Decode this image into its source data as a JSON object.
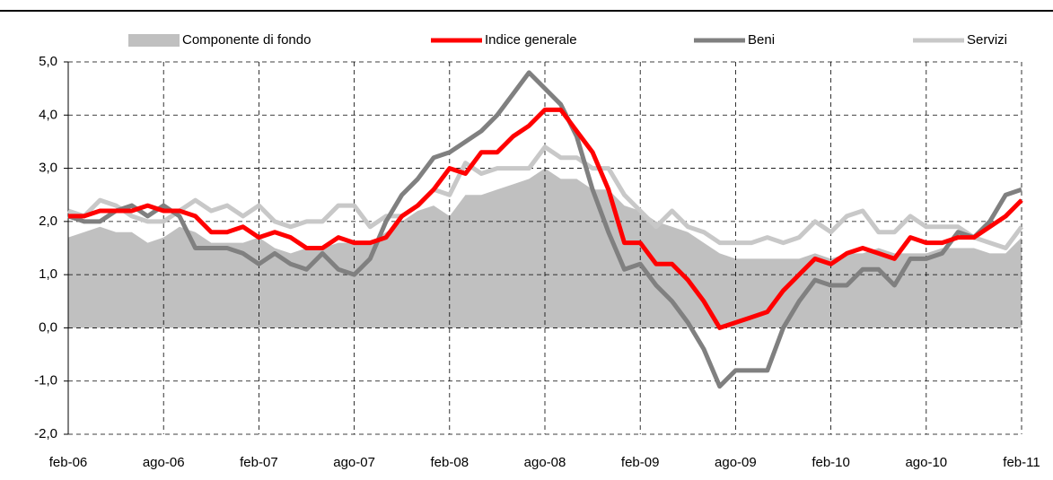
{
  "chart_data": {
    "type": "line",
    "categories": [
      "feb-06",
      null,
      null,
      null,
      null,
      null,
      "ago-06",
      null,
      null,
      null,
      null,
      null,
      "feb-07",
      null,
      null,
      null,
      null,
      null,
      "ago-07",
      null,
      null,
      null,
      null,
      null,
      "feb-08",
      null,
      null,
      null,
      null,
      null,
      "ago-08",
      null,
      null,
      null,
      null,
      null,
      "feb-09",
      null,
      null,
      null,
      null,
      null,
      "ago-09",
      null,
      null,
      null,
      null,
      null,
      "feb-10",
      null,
      null,
      null,
      null,
      null,
      "ago-10",
      null,
      null,
      null,
      null,
      null,
      "feb-11"
    ],
    "series": [
      {
        "name": "Componente di fondo",
        "style": "area",
        "color": "#c0c0c0",
        "values": [
          1.7,
          1.8,
          1.9,
          1.8,
          1.8,
          1.6,
          1.7,
          1.9,
          1.8,
          1.6,
          1.6,
          1.6,
          1.7,
          1.5,
          1.4,
          1.5,
          1.5,
          1.6,
          1.6,
          1.6,
          1.8,
          2.0,
          2.2,
          2.3,
          2.1,
          2.5,
          2.5,
          2.6,
          2.7,
          2.8,
          3.0,
          2.8,
          2.8,
          2.6,
          2.6,
          2.3,
          2.2,
          2.0,
          1.9,
          1.8,
          1.6,
          1.4,
          1.3,
          1.3,
          1.3,
          1.3,
          1.3,
          1.4,
          1.3,
          1.4,
          1.4,
          1.5,
          1.4,
          1.4,
          1.4,
          1.5,
          1.5,
          1.5,
          1.4,
          1.4,
          1.7
        ]
      },
      {
        "name": "Indice generale",
        "style": "line",
        "color": "#ff0000",
        "values": [
          2.1,
          2.1,
          2.2,
          2.2,
          2.2,
          2.3,
          2.2,
          2.2,
          2.1,
          1.8,
          1.8,
          1.9,
          1.7,
          1.8,
          1.7,
          1.5,
          1.5,
          1.7,
          1.6,
          1.6,
          1.7,
          2.1,
          2.3,
          2.6,
          3.0,
          2.9,
          3.3,
          3.3,
          3.6,
          3.8,
          4.1,
          4.1,
          3.7,
          3.3,
          2.6,
          1.6,
          1.6,
          1.2,
          1.2,
          0.9,
          0.5,
          0.0,
          0.1,
          0.2,
          0.3,
          0.7,
          1.0,
          1.3,
          1.2,
          1.4,
          1.5,
          1.4,
          1.3,
          1.7,
          1.6,
          1.6,
          1.7,
          1.7,
          1.9,
          2.1,
          2.4
        ]
      },
      {
        "name": "Beni",
        "style": "line",
        "color": "#808080",
        "values": [
          2.1,
          2.0,
          2.0,
          2.2,
          2.3,
          2.1,
          2.3,
          2.1,
          1.5,
          1.5,
          1.5,
          1.4,
          1.2,
          1.4,
          1.2,
          1.1,
          1.4,
          1.1,
          1.0,
          1.3,
          2.0,
          2.5,
          2.8,
          3.2,
          3.3,
          3.5,
          3.7,
          4.0,
          4.4,
          4.8,
          4.5,
          4.2,
          3.6,
          2.6,
          1.8,
          1.1,
          1.2,
          0.8,
          0.5,
          0.1,
          -0.4,
          -1.1,
          -0.8,
          -0.8,
          -0.8,
          0.0,
          0.5,
          0.9,
          0.8,
          0.8,
          1.1,
          1.1,
          0.8,
          1.3,
          1.3,
          1.4,
          1.8,
          1.7,
          2.0,
          2.5,
          2.6
        ]
      },
      {
        "name": "Servizi",
        "style": "line",
        "color": "#c8c8c8",
        "values": [
          2.2,
          2.1,
          2.4,
          2.3,
          2.1,
          2.0,
          2.0,
          2.2,
          2.4,
          2.2,
          2.3,
          2.1,
          2.3,
          2.0,
          1.9,
          2.0,
          2.0,
          2.3,
          2.3,
          1.9,
          2.1,
          2.1,
          2.3,
          2.6,
          2.5,
          3.1,
          2.9,
          3.0,
          3.0,
          3.0,
          3.4,
          3.2,
          3.2,
          3.0,
          3.0,
          2.5,
          2.2,
          1.9,
          2.2,
          1.9,
          1.8,
          1.6,
          1.6,
          1.6,
          1.7,
          1.6,
          1.7,
          2.0,
          1.8,
          2.1,
          2.2,
          1.8,
          1.8,
          2.1,
          1.9,
          1.9,
          1.9,
          1.7,
          1.6,
          1.5,
          1.9
        ]
      }
    ],
    "ylim": [
      -2,
      5
    ],
    "yticks": [
      {
        "value": -2,
        "label": "-2,0"
      },
      {
        "value": -1,
        "label": "-1,0"
      },
      {
        "value": 0,
        "label": "0,0"
      },
      {
        "value": 1,
        "label": "1,0"
      },
      {
        "value": 2,
        "label": "2,0"
      },
      {
        "value": 3,
        "label": "3,0"
      },
      {
        "value": 4,
        "label": "4,0"
      },
      {
        "value": 5,
        "label": "5,0"
      }
    ],
    "grid": true,
    "legend": "top"
  }
}
